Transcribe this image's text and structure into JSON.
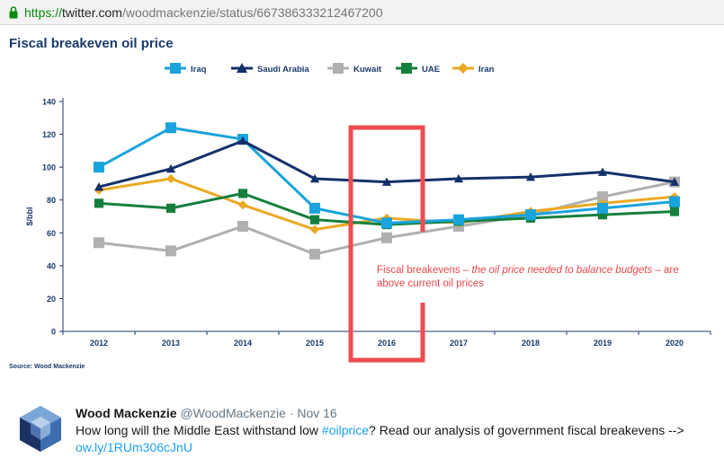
{
  "browser": {
    "url_scheme": "https://",
    "url_host": "twitter.com",
    "url_path": "/woodmackenzie/status/667386333212467200"
  },
  "chart_data": {
    "type": "line",
    "title": "Fiscal breakeven oil price",
    "ylabel": "$/bbl",
    "xlabel": "",
    "categories": [
      "2012",
      "2013",
      "2014",
      "2015",
      "2016",
      "2017",
      "2018",
      "2019",
      "2020"
    ],
    "ylim": [
      0,
      140
    ],
    "yticks": [
      0,
      20,
      40,
      60,
      80,
      100,
      120,
      140
    ],
    "legend_position": "top",
    "grid": false,
    "series": [
      {
        "name": "Iraq",
        "color": "#1aa3dc",
        "marker": "square",
        "values": [
          100,
          124,
          117,
          75,
          66,
          68,
          71,
          75,
          79
        ]
      },
      {
        "name": "Saudi Arabia",
        "color": "#14306b",
        "marker": "triangle",
        "values": [
          88,
          99,
          116,
          93,
          91,
          93,
          94,
          97,
          91
        ]
      },
      {
        "name": "Kuwait",
        "color": "#b0b0b0",
        "marker": "square",
        "values": [
          54,
          49,
          64,
          47,
          57,
          64,
          71,
          82,
          91
        ]
      },
      {
        "name": "UAE",
        "color": "#15803d",
        "marker": "square",
        "values": [
          78,
          75,
          84,
          68,
          65,
          67,
          69,
          71,
          73
        ]
      },
      {
        "name": "Iran",
        "color": "#eaa823",
        "marker": "diamond",
        "values": [
          86,
          93,
          77,
          62,
          69,
          66,
          73,
          78,
          82
        ]
      }
    ],
    "annotation": {
      "text_before": "Fiscal breakevens – ",
      "text_italic": "the oil price needed to balance budgets",
      "text_after": " – are above current oil prices",
      "highlight_category": "2016",
      "color": "#ef4b50"
    },
    "source": "Source: Wood Mackenzie"
  },
  "tweet": {
    "name": "Wood Mackenzie",
    "handle": "@WoodMackenzie",
    "dot": "·",
    "date": "Nov 16",
    "text_before": "How long will the Middle East withstand low ",
    "hashtag": "#oilprice",
    "text_after": "? Read our analysis of government fiscal breakevens --> ",
    "link": "ow.ly/1RUm306cJnU",
    "avatar": "hexagon-cube-logo-icon"
  }
}
